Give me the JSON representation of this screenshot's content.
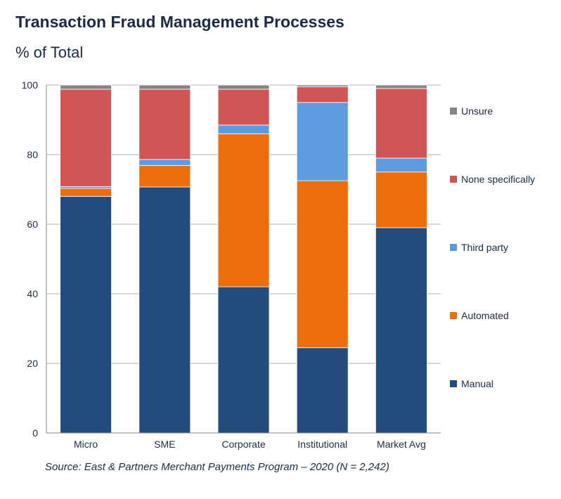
{
  "title": "Transaction Fraud Management Processes",
  "subtitle": "% of Total",
  "source": "Source: East & Partners Merchant Payments Program – 2020 (N = 2,242)",
  "chart_data": {
    "type": "bar",
    "stacked": true,
    "categories": [
      "Micro",
      "SME",
      "Corporate",
      "Institutional",
      "Market Avg"
    ],
    "series": [
      {
        "name": "Manual",
        "color": "#234b7d",
        "values": [
          68,
          70.7,
          42,
          24.5,
          59
        ]
      },
      {
        "name": "Automated",
        "color": "#ec6d0b",
        "values": [
          2.3,
          6.2,
          44,
          48,
          16
        ]
      },
      {
        "name": "Third party",
        "color": "#5d9ae0",
        "values": [
          0.5,
          1.7,
          2.5,
          22.5,
          4
        ]
      },
      {
        "name": "None specifically",
        "color": "#d05656",
        "values": [
          28,
          20.2,
          10.3,
          4.5,
          20
        ]
      },
      {
        "name": "Unsure",
        "color": "#868686",
        "values": [
          1.2,
          1.2,
          1.2,
          0.5,
          1
        ]
      }
    ],
    "ylim": [
      0,
      100
    ],
    "yticks": [
      0,
      20,
      40,
      60,
      80,
      100
    ],
    "grid": true,
    "legend": "right"
  }
}
